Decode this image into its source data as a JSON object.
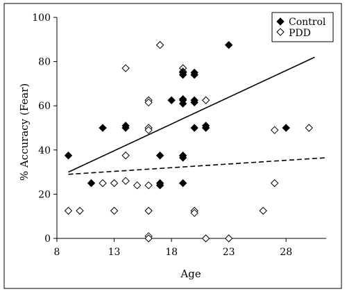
{
  "chart_data": {
    "type": "scatter",
    "xlabel": "Age",
    "ylabel": "% Accuracy (Fear)",
    "xlim": [
      8,
      31.5
    ],
    "ylim": [
      0,
      100
    ],
    "xticks": [
      8,
      13,
      18,
      23,
      28
    ],
    "yticks": [
      0,
      20,
      40,
      60,
      80,
      100
    ],
    "grid": false,
    "legend_position": "top-right",
    "series": [
      {
        "name": "Control",
        "marker": "filled-diamond",
        "color": "#000000",
        "points": [
          [
            9,
            37.5
          ],
          [
            11,
            25
          ],
          [
            12,
            50
          ],
          [
            14,
            50
          ],
          [
            14,
            51
          ],
          [
            17,
            37.5
          ],
          [
            17,
            25
          ],
          [
            17,
            24
          ],
          [
            18,
            62.5
          ],
          [
            19,
            75
          ],
          [
            19,
            74
          ],
          [
            19,
            62.5
          ],
          [
            19,
            61
          ],
          [
            19,
            63
          ],
          [
            19,
            37.5
          ],
          [
            19,
            36.5
          ],
          [
            19,
            25
          ],
          [
            20,
            75
          ],
          [
            20,
            74
          ],
          [
            20,
            62.5
          ],
          [
            20,
            61.5
          ],
          [
            20,
            50
          ],
          [
            21,
            50
          ],
          [
            21,
            51
          ],
          [
            23,
            87.5
          ],
          [
            28,
            50
          ]
        ],
        "trendline": {
          "style": "solid",
          "from": [
            9,
            30
          ],
          "to": [
            30.5,
            82
          ]
        }
      },
      {
        "name": "PDD",
        "marker": "open-diamond",
        "color": "#000000",
        "points": [
          [
            9,
            12.5
          ],
          [
            10,
            12.5
          ],
          [
            12,
            25
          ],
          [
            13,
            25
          ],
          [
            13,
            12.5
          ],
          [
            14,
            77
          ],
          [
            14,
            37.5
          ],
          [
            14,
            26
          ],
          [
            15,
            24
          ],
          [
            16,
            62.5
          ],
          [
            16,
            61.5
          ],
          [
            16,
            50
          ],
          [
            16,
            49
          ],
          [
            16,
            24
          ],
          [
            16,
            12.5
          ],
          [
            16,
            1
          ],
          [
            16,
            0
          ],
          [
            17,
            87.5
          ],
          [
            19,
            77
          ],
          [
            19,
            75.5
          ],
          [
            20,
            12.5
          ],
          [
            20,
            11.5
          ],
          [
            21,
            62.5
          ],
          [
            21,
            0
          ],
          [
            23,
            0
          ],
          [
            26,
            12.5
          ],
          [
            27,
            49
          ],
          [
            27,
            25
          ],
          [
            30,
            50
          ]
        ],
        "trendline": {
          "style": "dashed",
          "from": [
            9,
            29
          ],
          "to": [
            31.5,
            36.5
          ]
        }
      }
    ]
  }
}
